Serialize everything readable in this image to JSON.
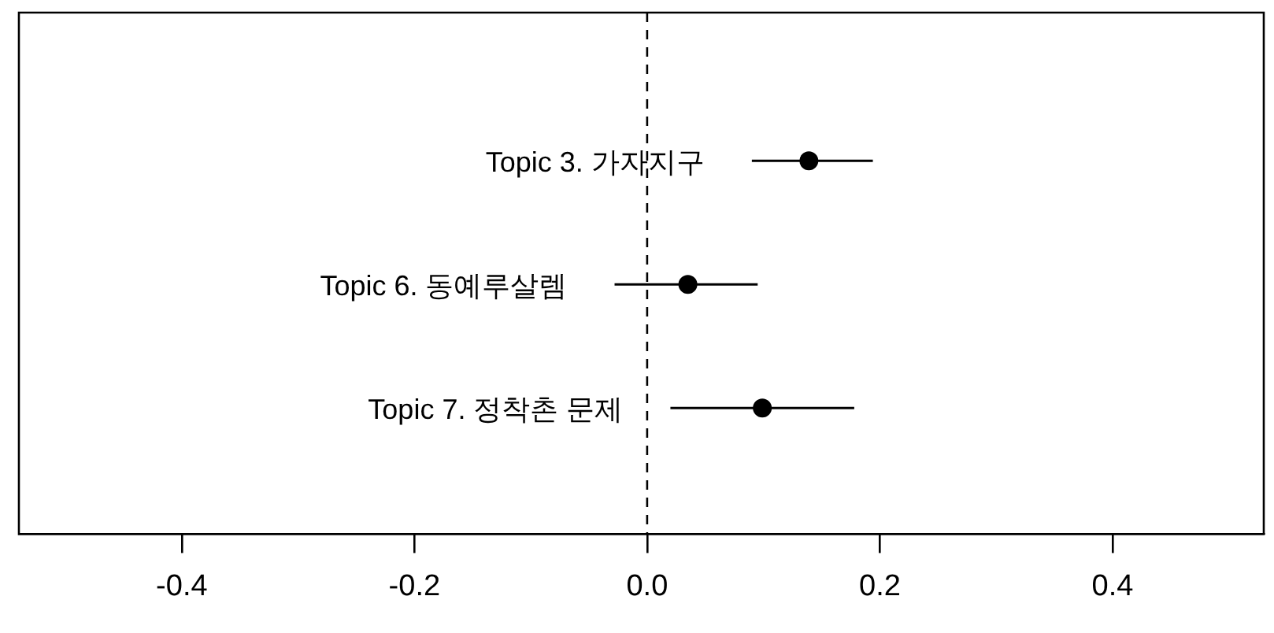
{
  "chart_data": {
    "type": "scatter",
    "orientation": "horizontal",
    "categories": [
      "Topic 3. 가자지구",
      "Topic 6. 동예루살렘",
      "Topic 7. 정착촌 문제"
    ],
    "series": [
      {
        "color": "#000000",
        "values": [
          0.139,
          0.035,
          0.099
        ],
        "errors": [
          [
            0.09,
            0.194
          ],
          [
            -0.028,
            0.095
          ],
          [
            0.02,
            0.178
          ]
        ]
      }
    ],
    "xlim": [
      -0.54,
      0.53
    ],
    "xticks": [
      -0.4,
      -0.2,
      {
        "value": 0,
        "label": "0.0"
      },
      0.2,
      0.4
    ],
    "ref_lines": [
      {
        "axis": "x",
        "value": 0,
        "color": "#000000",
        "line_style": "dashed"
      }
    ],
    "marker": "circle",
    "grid": false,
    "legend": false,
    "tick_labels": "x"
  }
}
